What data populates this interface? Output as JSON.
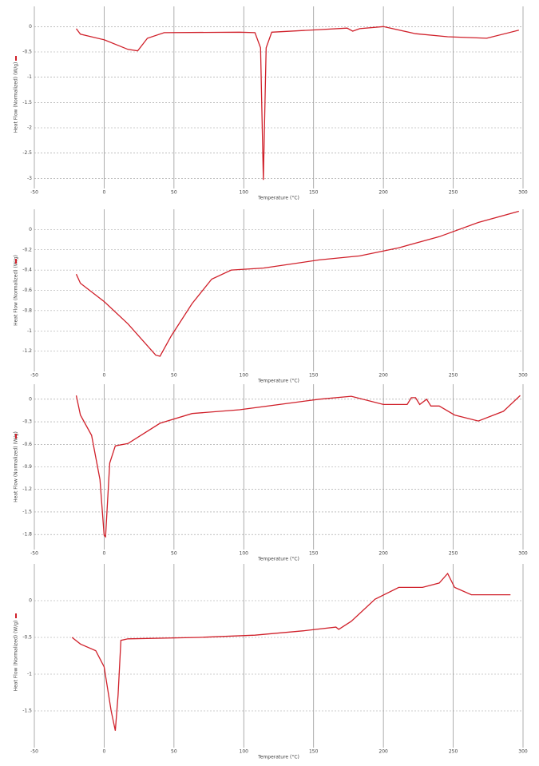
{
  "chart_data": [
    {
      "type": "line",
      "xlabel": "Temperature (°C)",
      "ylabel": "Heat Flow (Normalized) (W/g)",
      "color": "#d0202a",
      "grid": true,
      "xlim": [
        -50,
        300
      ],
      "xticks": [
        -50,
        0,
        50,
        100,
        150,
        200,
        250,
        300
      ],
      "ylim": [
        -3.2,
        0.4
      ],
      "yticks": [
        -3,
        -2.5,
        -2,
        -1.5,
        -1,
        -0.5,
        0
      ],
      "x": [
        -20,
        -17,
        0,
        17,
        24,
        31,
        43,
        97,
        108,
        112,
        114,
        116,
        120,
        154,
        174,
        178,
        183,
        200,
        223,
        246,
        274,
        297
      ],
      "values": [
        -0.04,
        -0.15,
        -0.26,
        -0.45,
        -0.48,
        -0.23,
        -0.12,
        -0.11,
        -0.12,
        -0.42,
        -3.03,
        -0.42,
        -0.11,
        -0.06,
        -0.03,
        -0.09,
        -0.04,
        0.0,
        -0.14,
        -0.2,
        -0.23,
        -0.07
      ]
    },
    {
      "type": "line",
      "xlabel": "Temperature (°C)",
      "ylabel": "Heat Flow (Normalized) (W/g)",
      "color": "#d0202a",
      "grid": true,
      "xlim": [
        -50,
        300
      ],
      "xticks": [
        -50,
        0,
        50,
        100,
        150,
        200,
        250,
        300
      ],
      "ylim": [
        -1.4,
        0.2
      ],
      "yticks": [
        -1.2,
        -1,
        -0.8,
        -0.6,
        -0.4,
        -0.2,
        0
      ],
      "x": [
        -20,
        -17,
        0,
        17,
        37,
        40,
        48,
        63,
        77,
        91,
        114,
        154,
        183,
        211,
        240,
        268,
        297
      ],
      "values": [
        -0.44,
        -0.53,
        -0.71,
        -0.93,
        -1.24,
        -1.25,
        -1.05,
        -0.73,
        -0.49,
        -0.4,
        -0.38,
        -0.3,
        -0.26,
        -0.18,
        -0.07,
        0.07,
        0.18
      ]
    },
    {
      "type": "line",
      "xlabel": "Temperature (°C)",
      "ylabel": "Heat Flow (Normalized) (W/g)",
      "color": "#d0202a",
      "grid": true,
      "xlim": [
        -50,
        300
      ],
      "xticks": [
        -50,
        0,
        50,
        100,
        150,
        200,
        250,
        300
      ],
      "ylim": [
        -2.0,
        0.2
      ],
      "yticks": [
        -1.8,
        -1.5,
        -1.2,
        -0.9,
        -0.6,
        -0.3,
        0
      ],
      "x": [
        -20,
        -17,
        -9,
        -3,
        0,
        1,
        4,
        8,
        17,
        40,
        63,
        97,
        154,
        177,
        200,
        217,
        220,
        223,
        226,
        231,
        234,
        240,
        251,
        268,
        286,
        298
      ],
      "values": [
        0.05,
        -0.21,
        -0.48,
        -1.07,
        -1.81,
        -1.83,
        -0.85,
        -0.62,
        -0.59,
        -0.32,
        -0.19,
        -0.14,
        0.0,
        0.04,
        -0.07,
        -0.07,
        0.02,
        0.02,
        -0.07,
        0.0,
        -0.09,
        -0.09,
        -0.21,
        -0.29,
        -0.16,
        0.05
      ]
    },
    {
      "type": "line",
      "xlabel": "Temperature (°C)",
      "ylabel": "Heat Flow (Normalized) (W/g)",
      "color": "#d0202a",
      "grid": true,
      "xlim": [
        -50,
        300
      ],
      "xticks": [
        -50,
        0,
        50,
        100,
        150,
        200,
        250,
        300
      ],
      "ylim": [
        -2.0,
        0.5
      ],
      "yticks": [
        -1.5,
        -1,
        -0.5,
        0
      ],
      "x": [
        -23,
        -17,
        -6,
        0,
        5,
        8,
        10,
        12,
        17,
        68,
        108,
        143,
        166,
        168,
        177,
        194,
        211,
        228,
        240,
        246,
        251,
        263,
        291
      ],
      "values": [
        -0.5,
        -0.59,
        -0.68,
        -0.9,
        -1.5,
        -1.77,
        -1.28,
        -0.54,
        -0.52,
        -0.5,
        -0.47,
        -0.41,
        -0.36,
        -0.39,
        -0.28,
        0.02,
        0.18,
        0.18,
        0.24,
        0.37,
        0.18,
        0.08,
        0.08
      ]
    }
  ]
}
